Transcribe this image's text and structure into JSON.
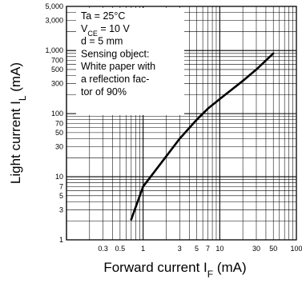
{
  "chart_data": {
    "type": "line",
    "xlabel": {
      "main": "Forward current I",
      "sub": "F",
      "unit": " (mA)"
    },
    "ylabel": {
      "main": "Light current  I",
      "sub": "L",
      "unit": " (mA)"
    },
    "x_scale": "log",
    "y_scale": "log",
    "xlim": [
      0.1,
      100
    ],
    "ylim": [
      1,
      5000
    ],
    "grid": true,
    "x_ticks": [
      {
        "value": 0.3,
        "label": "0.3"
      },
      {
        "value": 0.5,
        "label": "0.5"
      },
      {
        "value": 1,
        "label": "1"
      },
      {
        "value": 3,
        "label": "3"
      },
      {
        "value": 5,
        "label": "5"
      },
      {
        "value": 7,
        "label": "7"
      },
      {
        "value": 10,
        "label": "10"
      },
      {
        "value": 30,
        "label": "30"
      },
      {
        "value": 50,
        "label": "50"
      },
      {
        "value": 100,
        "label": "100"
      }
    ],
    "y_ticks": [
      {
        "value": 1,
        "label": "1"
      },
      {
        "value": 3,
        "label": "3"
      },
      {
        "value": 5,
        "label": "5"
      },
      {
        "value": 7,
        "label": "7"
      },
      {
        "value": 10,
        "label": "10"
      },
      {
        "value": 30,
        "label": "30"
      },
      {
        "value": 50,
        "label": "50"
      },
      {
        "value": 70,
        "label": "70"
      },
      {
        "value": 100,
        "label": "100"
      },
      {
        "value": 300,
        "label": "300"
      },
      {
        "value": 500,
        "label": "500"
      },
      {
        "value": 700,
        "label": "700"
      },
      {
        "value": 1000,
        "label": "1,000"
      },
      {
        "value": 3000,
        "label": "3,000"
      },
      {
        "value": 5000,
        "label": "5,000"
      }
    ],
    "series": [
      {
        "x": [
          0.7,
          1,
          2,
          3,
          5,
          7,
          10,
          20,
          30,
          50
        ],
        "y": [
          2.1,
          7,
          21,
          40,
          80,
          120,
          170,
          330,
          500,
          900
        ]
      }
    ],
    "annotation": {
      "lines": [
        {
          "text": "Ta = 25°C"
        },
        {
          "text": "V",
          "sub": "CE",
          "rest": " = 10 V"
        },
        {
          "text": "d = 5 mm"
        },
        {
          "text": "Sensing object:"
        },
        {
          "text": "White paper with"
        },
        {
          "text": "a reflection fac-"
        },
        {
          "text": "tor of 90%"
        }
      ]
    }
  }
}
